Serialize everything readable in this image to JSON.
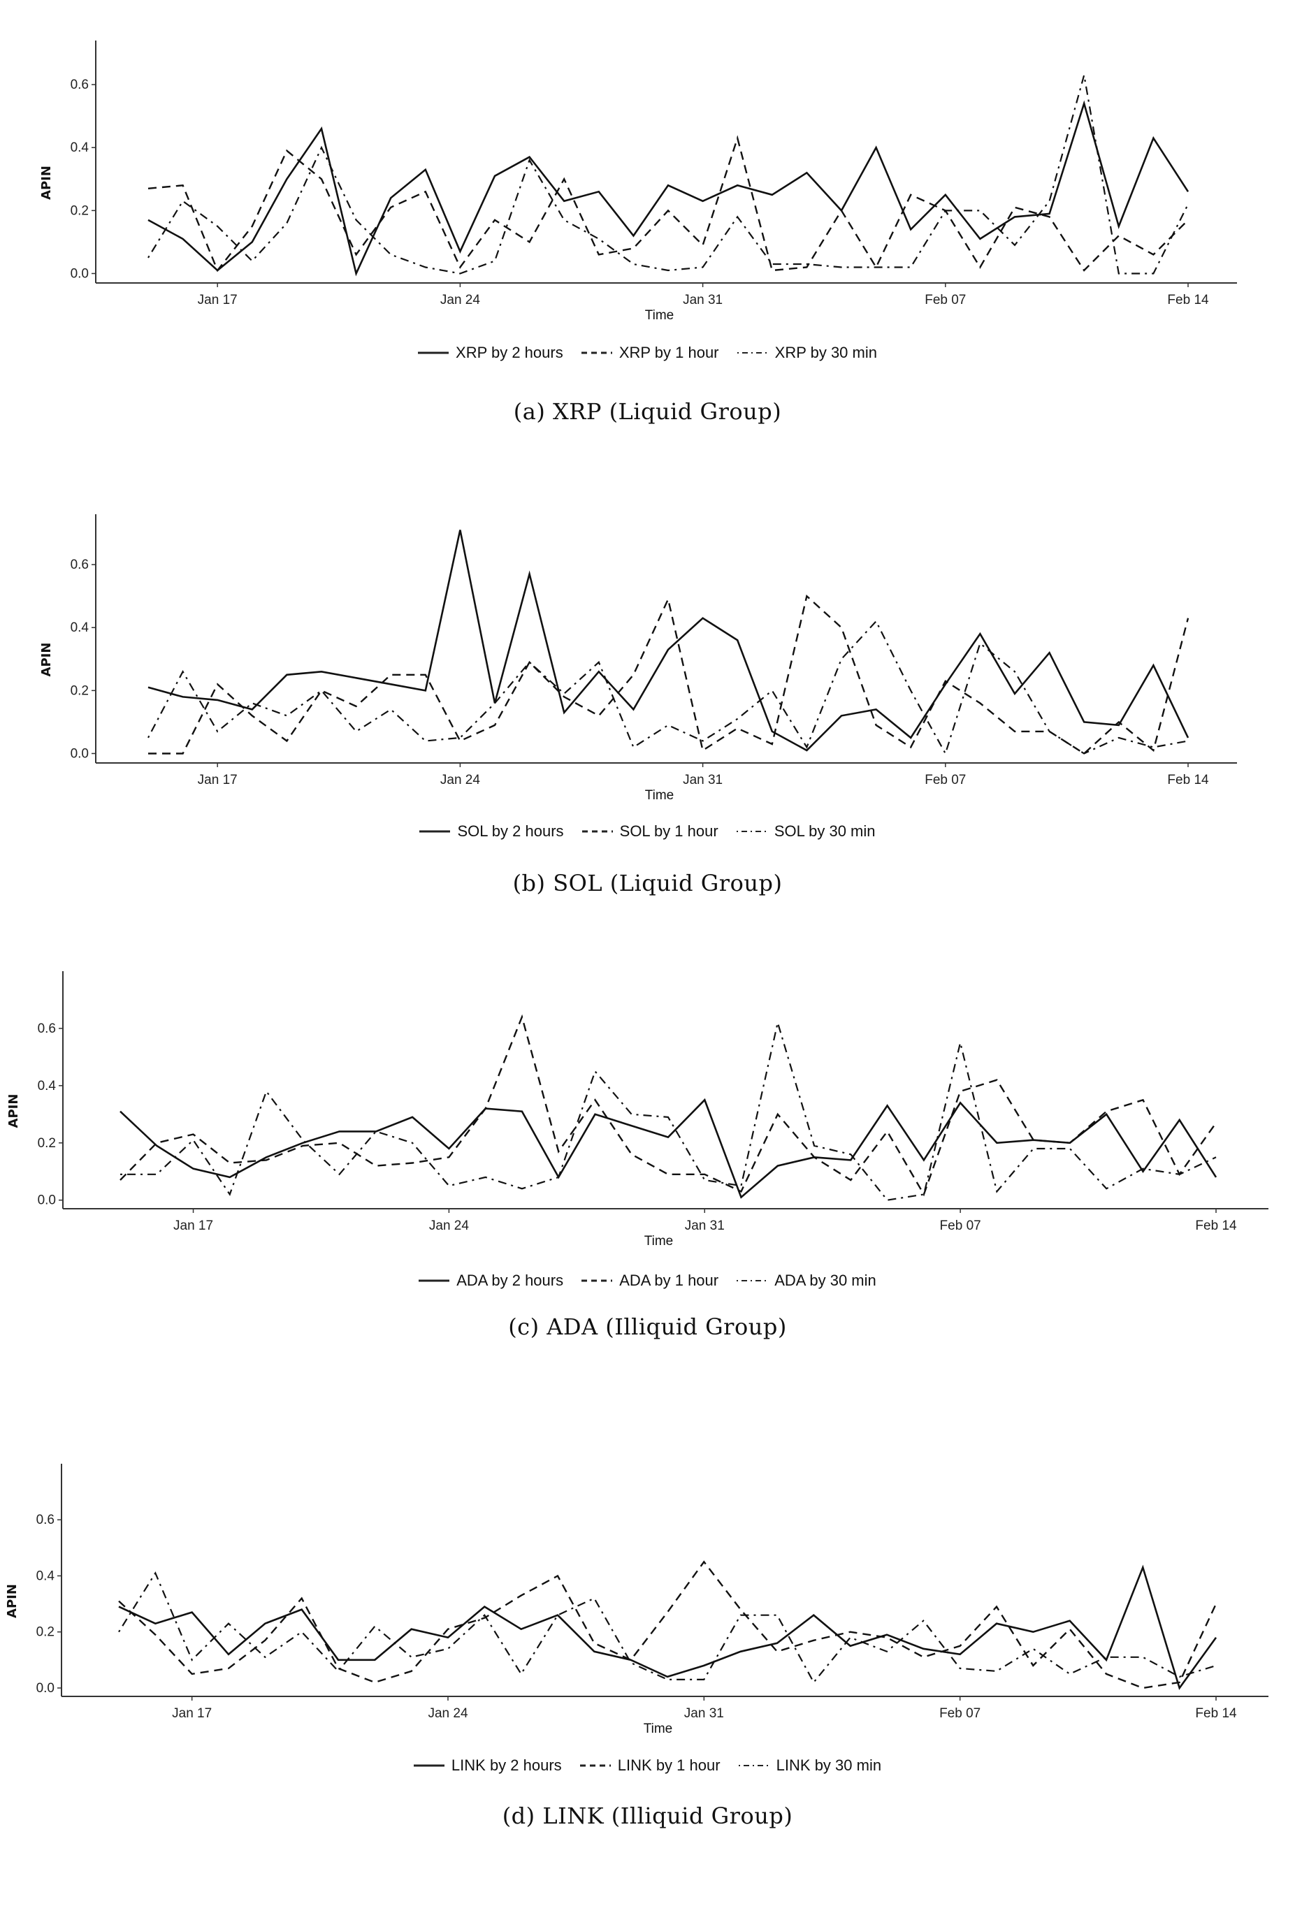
{
  "chart_data": [
    {
      "type": "line",
      "caption": "(a)  XRP (Liquid Group)",
      "xlabel": "Time",
      "ylabel": "APIN",
      "ylim": [
        -0.03,
        0.74
      ],
      "yticks": [
        "0.0",
        "0.2",
        "0.4",
        "0.6"
      ],
      "ytick_values": [
        0,
        0.2,
        0.4,
        0.6
      ],
      "xticks": [
        "Jan 17",
        "Jan 24",
        "Jan 31",
        "Feb 07",
        "Feb 14"
      ],
      "xtick_days": [
        2,
        9,
        16,
        23,
        30
      ],
      "grid": false,
      "legend_position": "bottom",
      "x_days": [
        0,
        1,
        2,
        3,
        4,
        5,
        6,
        7,
        8,
        9,
        10,
        11,
        12,
        13,
        14,
        15,
        16,
        17,
        18,
        19,
        20,
        21,
        22,
        23,
        24,
        25,
        26,
        27,
        28,
        29,
        30
      ],
      "series": [
        {
          "name": "XRP by 2 hours",
          "style": "solid",
          "values": [
            0.17,
            0.11,
            0.01,
            0.1,
            0.3,
            0.46,
            0.0,
            0.24,
            0.33,
            0.07,
            0.31,
            0.37,
            0.23,
            0.26,
            0.12,
            0.28,
            0.23,
            0.28,
            0.25,
            0.32,
            0.2,
            0.4,
            0.14,
            0.25,
            0.11,
            0.18,
            0.19,
            0.54,
            0.15,
            0.43,
            0.26
          ]
        },
        {
          "name": "XRP by 1 hour",
          "style": "dashed",
          "values": [
            0.27,
            0.28,
            0.01,
            0.15,
            0.39,
            0.3,
            0.06,
            0.21,
            0.26,
            0.02,
            0.17,
            0.1,
            0.3,
            0.06,
            0.08,
            0.2,
            0.09,
            0.43,
            0.01,
            0.02,
            0.2,
            0.02,
            0.25,
            0.2,
            0.02,
            0.21,
            0.18,
            0.01,
            0.12,
            0.06,
            0.17
          ]
        },
        {
          "name": "XRP by 30 min",
          "style": "dashdot",
          "values": [
            0.05,
            0.23,
            0.15,
            0.04,
            0.16,
            0.4,
            0.17,
            0.06,
            0.02,
            0.0,
            0.04,
            0.36,
            0.17,
            0.11,
            0.03,
            0.01,
            0.02,
            0.18,
            0.03,
            0.03,
            0.02,
            0.02,
            0.02,
            0.2,
            0.2,
            0.09,
            0.23,
            0.63,
            0.0,
            0.0,
            0.22
          ]
        }
      ]
    },
    {
      "type": "line",
      "caption": "(b)  SOL (Liquid Group)",
      "xlabel": "Time",
      "ylabel": "APIN",
      "ylim": [
        -0.03,
        0.76
      ],
      "yticks": [
        "0.0",
        "0.2",
        "0.4",
        "0.6"
      ],
      "ytick_values": [
        0,
        0.2,
        0.4,
        0.6
      ],
      "xticks": [
        "Jan 17",
        "Jan 24",
        "Jan 31",
        "Feb 07",
        "Feb 14"
      ],
      "xtick_days": [
        2,
        9,
        16,
        23,
        30
      ],
      "grid": false,
      "legend_position": "bottom",
      "x_days": [
        0,
        1,
        2,
        3,
        4,
        5,
        6,
        7,
        8,
        9,
        10,
        11,
        12,
        13,
        14,
        15,
        16,
        17,
        18,
        19,
        20,
        21,
        22,
        23,
        24,
        25,
        26,
        27,
        28,
        29,
        30
      ],
      "series": [
        {
          "name": "SOL by 2 hours",
          "style": "solid",
          "values": [
            0.21,
            0.18,
            0.17,
            0.14,
            0.25,
            0.26,
            0.24,
            0.22,
            0.2,
            0.71,
            0.16,
            0.57,
            0.13,
            0.26,
            0.14,
            0.33,
            0.43,
            0.36,
            0.07,
            0.01,
            0.12,
            0.14,
            0.05,
            0.22,
            0.38,
            0.19,
            0.32,
            0.1,
            0.09,
            0.28,
            0.05
          ]
        },
        {
          "name": "SOL by 1 hour",
          "style": "dashed",
          "values": [
            0.0,
            0.0,
            0.22,
            0.12,
            0.04,
            0.2,
            0.15,
            0.25,
            0.25,
            0.04,
            0.09,
            0.29,
            0.18,
            0.12,
            0.25,
            0.49,
            0.01,
            0.08,
            0.03,
            0.5,
            0.4,
            0.09,
            0.02,
            0.23,
            0.16,
            0.07,
            0.07,
            0.0,
            0.1,
            0.01,
            0.43
          ]
        },
        {
          "name": "SOL by 30 min",
          "style": "dashdot",
          "values": [
            0.05,
            0.26,
            0.07,
            0.16,
            0.12,
            0.2,
            0.07,
            0.14,
            0.04,
            0.05,
            0.16,
            0.29,
            0.19,
            0.29,
            0.02,
            0.09,
            0.04,
            0.11,
            0.2,
            0.02,
            0.3,
            0.42,
            0.2,
            0.0,
            0.35,
            0.26,
            0.07,
            0.0,
            0.05,
            0.02,
            0.04
          ]
        }
      ]
    },
    {
      "type": "line",
      "caption": "(c)  ADA (Illiquid Group)",
      "xlabel": "Time",
      "ylabel": "APIN",
      "ylim": [
        -0.03,
        0.8
      ],
      "yticks": [
        "0.0",
        "0.2",
        "0.4",
        "0.6"
      ],
      "ytick_values": [
        0,
        0.2,
        0.4,
        0.6
      ],
      "xticks": [
        "Jan 17",
        "Jan 24",
        "Jan 31",
        "Feb 07",
        "Feb 14"
      ],
      "xtick_days": [
        2,
        9,
        16,
        23,
        30
      ],
      "grid": false,
      "legend_position": "bottom",
      "x_days": [
        0,
        1,
        2,
        3,
        4,
        5,
        6,
        7,
        8,
        9,
        10,
        11,
        12,
        13,
        14,
        15,
        16,
        17,
        18,
        19,
        20,
        21,
        22,
        23,
        24,
        25,
        26,
        27,
        28,
        29,
        30
      ],
      "series": [
        {
          "name": "ADA by 2 hours",
          "style": "solid",
          "values": [
            0.31,
            0.19,
            0.11,
            0.08,
            0.15,
            0.2,
            0.24,
            0.24,
            0.29,
            0.18,
            0.32,
            0.31,
            0.08,
            0.3,
            0.26,
            0.22,
            0.35,
            0.01,
            0.12,
            0.15,
            0.14,
            0.33,
            0.14,
            0.34,
            0.2,
            0.21,
            0.2,
            0.3,
            0.1,
            0.28,
            0.08
          ]
        },
        {
          "name": "ADA by 1 hour",
          "style": "dashed",
          "values": [
            0.07,
            0.2,
            0.23,
            0.13,
            0.14,
            0.19,
            0.2,
            0.12,
            0.13,
            0.15,
            0.32,
            0.64,
            0.17,
            0.35,
            0.16,
            0.09,
            0.09,
            0.03,
            0.3,
            0.15,
            0.07,
            0.24,
            0.02,
            0.38,
            0.42,
            0.21,
            0.2,
            0.31,
            0.35,
            0.09,
            0.27
          ]
        },
        {
          "name": "ADA by 30 min",
          "style": "dashdot",
          "values": [
            0.09,
            0.09,
            0.21,
            0.02,
            0.38,
            0.21,
            0.09,
            0.24,
            0.2,
            0.05,
            0.08,
            0.04,
            0.08,
            0.45,
            0.3,
            0.29,
            0.07,
            0.05,
            0.62,
            0.19,
            0.16,
            0.0,
            0.02,
            0.55,
            0.03,
            0.18,
            0.18,
            0.04,
            0.11,
            0.09,
            0.15
          ]
        }
      ]
    },
    {
      "type": "line",
      "caption": "(d)  LINK (Illiquid Group)",
      "xlabel": "Time",
      "ylabel": "APIN",
      "ylim": [
        -0.03,
        0.8
      ],
      "yticks": [
        "0.0",
        "0.2",
        "0.4",
        "0.6"
      ],
      "ytick_values": [
        0,
        0.2,
        0.4,
        0.6
      ],
      "xticks": [
        "Jan 17",
        "Jan 24",
        "Jan 31",
        "Feb 07",
        "Feb 14"
      ],
      "xtick_days": [
        2,
        9,
        16,
        23,
        30
      ],
      "grid": false,
      "legend_position": "bottom",
      "x_days": [
        0,
        1,
        2,
        3,
        4,
        5,
        6,
        7,
        8,
        9,
        10,
        11,
        12,
        13,
        14,
        15,
        16,
        17,
        18,
        19,
        20,
        21,
        22,
        23,
        24,
        25,
        26,
        27,
        28,
        29,
        30
      ],
      "series": [
        {
          "name": "LINK by 2 hours",
          "style": "solid",
          "values": [
            0.29,
            0.23,
            0.27,
            0.12,
            0.23,
            0.28,
            0.1,
            0.1,
            0.21,
            0.18,
            0.29,
            0.21,
            0.26,
            0.13,
            0.1,
            0.04,
            0.08,
            0.13,
            0.16,
            0.26,
            0.15,
            0.19,
            0.14,
            0.12,
            0.23,
            0.2,
            0.24,
            0.1,
            0.43,
            0.0,
            0.18
          ]
        },
        {
          "name": "LINK by 1 hour",
          "style": "dashed",
          "values": [
            0.31,
            0.19,
            0.05,
            0.07,
            0.17,
            0.32,
            0.07,
            0.02,
            0.06,
            0.21,
            0.25,
            0.33,
            0.4,
            0.16,
            0.1,
            0.27,
            0.45,
            0.28,
            0.13,
            0.17,
            0.2,
            0.18,
            0.11,
            0.15,
            0.29,
            0.08,
            0.21,
            0.05,
            0.0,
            0.02,
            0.3
          ]
        },
        {
          "name": "LINK by 30 min",
          "style": "dashdot",
          "values": [
            0.2,
            0.41,
            0.1,
            0.23,
            0.11,
            0.2,
            0.06,
            0.22,
            0.11,
            0.14,
            0.26,
            0.05,
            0.26,
            0.32,
            0.09,
            0.03,
            0.03,
            0.26,
            0.26,
            0.02,
            0.18,
            0.13,
            0.24,
            0.07,
            0.06,
            0.14,
            0.05,
            0.11,
            0.11,
            0.04,
            0.08
          ]
        }
      ]
    }
  ]
}
